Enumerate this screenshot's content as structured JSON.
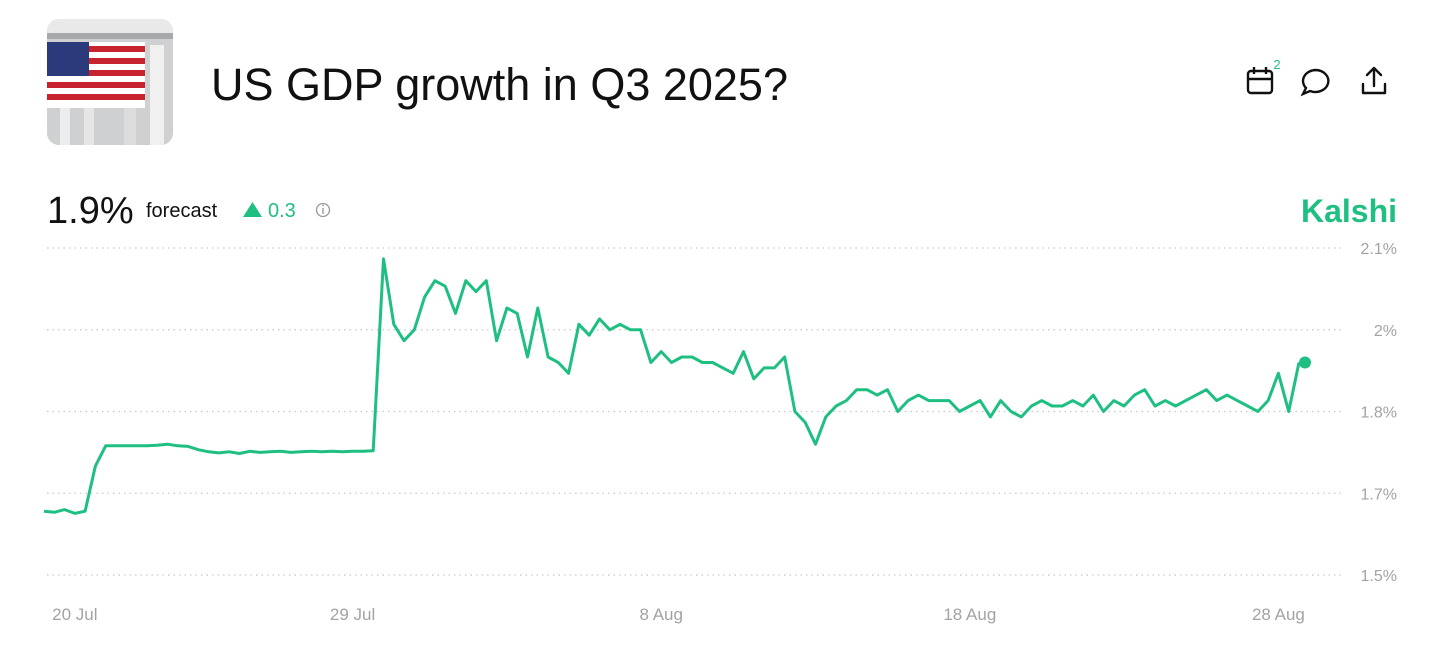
{
  "header": {
    "title": "US GDP growth in Q3 2025?",
    "calendar_badge": "2"
  },
  "forecast": {
    "value": "1.9%",
    "label": "forecast",
    "change": "0.3"
  },
  "brand": "Kalshi",
  "chart_data": {
    "type": "line",
    "categories": [
      null,
      null,
      null,
      "20 Jul",
      null,
      null,
      null,
      null,
      null,
      null,
      null,
      null,
      null,
      null,
      null,
      null,
      null,
      null,
      null,
      null,
      null,
      null,
      null,
      null,
      null,
      null,
      null,
      null,
      null,
      null,
      "29 Jul",
      null,
      null,
      null,
      null,
      null,
      null,
      null,
      null,
      null,
      null,
      null,
      null,
      null,
      null,
      null,
      null,
      null,
      null,
      null,
      null,
      null,
      null,
      null,
      null,
      null,
      null,
      null,
      null,
      null,
      "8 Aug",
      null,
      null,
      null,
      null,
      null,
      null,
      null,
      null,
      null,
      null,
      null,
      null,
      null,
      null,
      null,
      null,
      null,
      null,
      null,
      null,
      null,
      null,
      null,
      null,
      null,
      null,
      null,
      null,
      null,
      "18 Aug",
      null,
      null,
      null,
      null,
      null,
      null,
      null,
      null,
      null,
      null,
      null,
      null,
      null,
      null,
      null,
      null,
      null,
      null,
      null,
      null,
      null,
      null,
      null,
      null,
      null,
      null,
      null,
      null,
      null,
      "28 Aug",
      null,
      null
    ],
    "series": [
      {
        "color": "#1fbf82",
        "values": [
          1.617,
          1.615,
          1.62,
          1.613,
          1.617,
          1.7,
          1.737,
          1.737,
          1.737,
          1.737,
          1.737,
          1.738,
          1.74,
          1.737,
          1.736,
          1.73,
          1.726,
          1.724,
          1.726,
          1.723,
          1.727,
          1.725,
          1.726,
          1.727,
          1.725,
          1.726,
          1.727,
          1.726,
          1.727,
          1.726,
          1.727,
          1.727,
          1.728,
          2.08,
          1.96,
          1.93,
          1.95,
          2.01,
          2.04,
          2.03,
          1.98,
          2.04,
          2.02,
          2.04,
          1.93,
          1.99,
          1.98,
          1.9,
          1.99,
          1.9,
          1.89,
          1.87,
          1.96,
          1.94,
          1.97,
          1.95,
          1.96,
          1.95,
          1.95,
          1.89,
          1.91,
          1.89,
          1.9,
          1.9,
          1.89,
          1.89,
          1.88,
          1.87,
          1.91,
          1.86,
          1.88,
          1.88,
          1.9,
          1.8,
          1.78,
          1.74,
          1.79,
          1.81,
          1.82,
          1.84,
          1.84,
          1.83,
          1.84,
          1.8,
          1.82,
          1.83,
          1.82,
          1.82,
          1.82,
          1.8,
          1.81,
          1.82,
          1.79,
          1.82,
          1.8,
          1.79,
          1.81,
          1.82,
          1.81,
          1.81,
          1.82,
          1.81,
          1.83,
          1.8,
          1.82,
          1.81,
          1.83,
          1.84,
          1.81,
          1.82,
          1.81,
          1.82,
          1.83,
          1.84,
          1.82,
          1.83,
          1.82,
          1.81,
          1.8,
          1.82,
          1.87,
          1.8,
          1.89
        ]
      }
    ],
    "ylim": [
      1.5,
      2.1
    ],
    "yticks": [
      {
        "value": 1.5,
        "label": "1.5%"
      },
      {
        "value": 1.65,
        "label": "1.7%"
      },
      {
        "value": 1.8,
        "label": "1.8%"
      },
      {
        "value": 1.95,
        "label": "2%"
      },
      {
        "value": 2.1,
        "label": "2.1%"
      }
    ],
    "grid": true
  }
}
